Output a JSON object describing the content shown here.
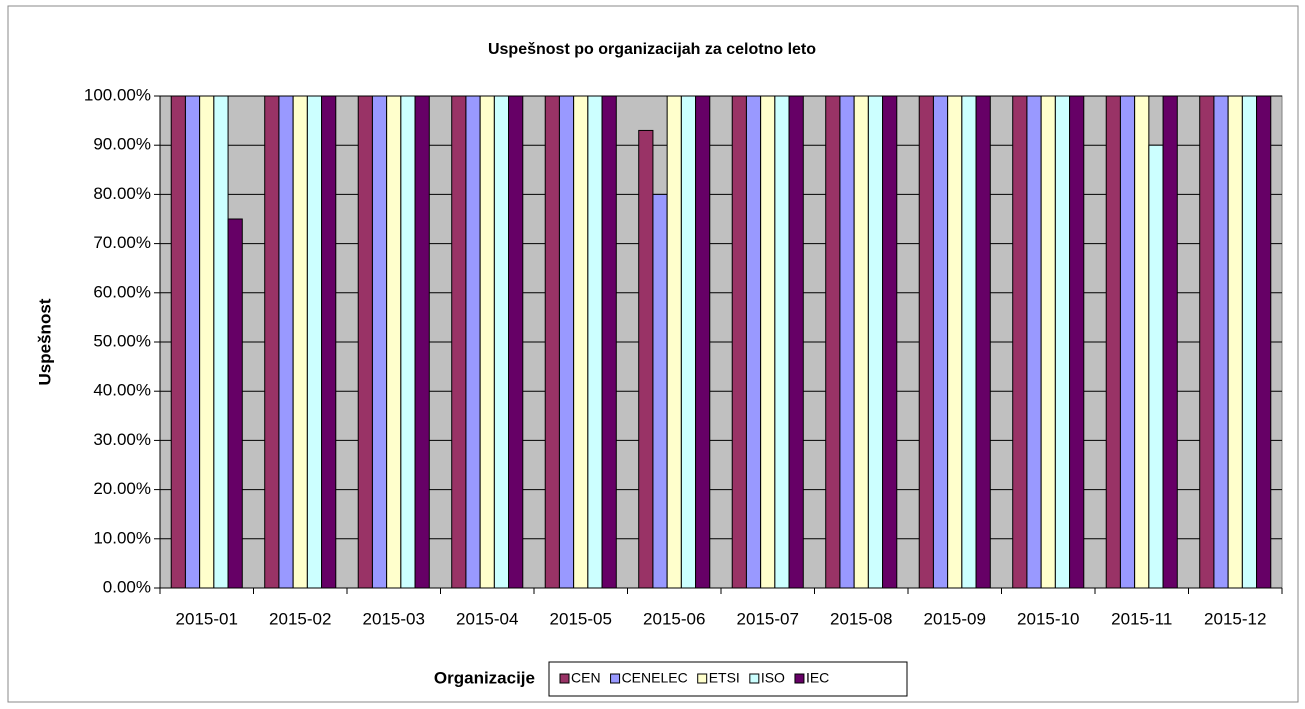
{
  "chart_data": {
    "type": "bar",
    "title": "Uspešnost po organizacijah za celotno leto",
    "y_label": "Uspešnost",
    "legend_title": "Organizacije",
    "categories": [
      "2015-01",
      "2015-02",
      "2015-03",
      "2015-04",
      "2015-05",
      "2015-06",
      "2015-07",
      "2015-08",
      "2015-09",
      "2015-10",
      "2015-11",
      "2015-12"
    ],
    "series": [
      {
        "name": "CEN",
        "color": "#993366",
        "values": [
          100,
          100,
          100,
          100,
          100,
          93,
          100,
          100,
          100,
          100,
          100,
          100
        ]
      },
      {
        "name": "CENELEC",
        "color": "#9999ff",
        "values": [
          100,
          100,
          100,
          100,
          100,
          80,
          100,
          100,
          100,
          100,
          100,
          100
        ]
      },
      {
        "name": "ETSI",
        "color": "#ffffcc",
        "values": [
          100,
          100,
          100,
          100,
          100,
          100,
          100,
          100,
          100,
          100,
          100,
          100
        ]
      },
      {
        "name": "ISO",
        "color": "#ccffff",
        "values": [
          100,
          100,
          100,
          100,
          100,
          100,
          100,
          100,
          100,
          100,
          90,
          100
        ]
      },
      {
        "name": "IEC",
        "color": "#660066",
        "values": [
          75,
          100,
          100,
          100,
          100,
          100,
          100,
          100,
          100,
          100,
          100,
          100
        ]
      }
    ],
    "ylim": [
      0,
      100
    ],
    "yticks": [
      {
        "value": 0,
        "label": "0.00%"
      },
      {
        "value": 10,
        "label": "10.00%"
      },
      {
        "value": 20,
        "label": "20.00%"
      },
      {
        "value": 30,
        "label": "30.00%"
      },
      {
        "value": 40,
        "label": "40.00%"
      },
      {
        "value": 50,
        "label": "50.00%"
      },
      {
        "value": 60,
        "label": "60.00%"
      },
      {
        "value": 70,
        "label": "70.00%"
      },
      {
        "value": 80,
        "label": "80.00%"
      },
      {
        "value": 90,
        "label": "90.00%"
      },
      {
        "value": 100,
        "label": "100.00%"
      }
    ],
    "grid": true,
    "plot_background": "#c0c0c0",
    "legend": "bottom"
  }
}
